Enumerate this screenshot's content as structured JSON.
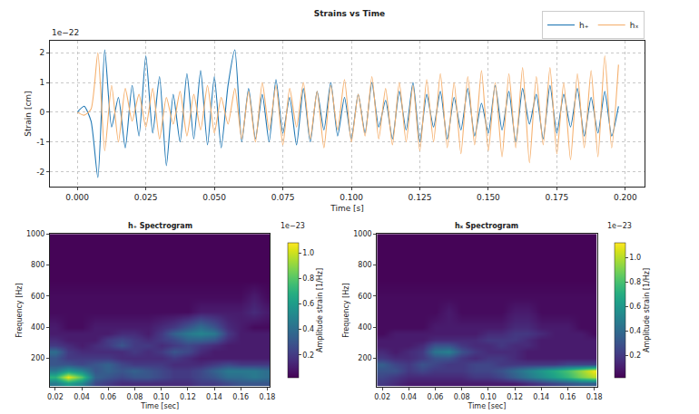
{
  "chart_data": [
    {
      "type": "line",
      "title": "Strains vs Time",
      "x_label": "Time [s]",
      "y_label": "Strain [cm]",
      "y_scale_label": "1e−22",
      "x": [
        0,
        0.0025,
        0.005,
        0.0075,
        0.01,
        0.0125,
        0.015,
        0.0175,
        0.02,
        0.0225,
        0.025,
        0.0275,
        0.03,
        0.0325,
        0.035,
        0.0375,
        0.04,
        0.0425,
        0.045,
        0.0475,
        0.05,
        0.0525,
        0.055,
        0.0575,
        0.06,
        0.0625,
        0.065,
        0.0675,
        0.07,
        0.0725,
        0.075,
        0.0775,
        0.08,
        0.0825,
        0.085,
        0.0875,
        0.09,
        0.0925,
        0.095,
        0.0975,
        0.1,
        0.1025,
        0.105,
        0.1075,
        0.11,
        0.1125,
        0.115,
        0.1175,
        0.12,
        0.1225,
        0.125,
        0.1275,
        0.13,
        0.1325,
        0.135,
        0.1375,
        0.14,
        0.1425,
        0.145,
        0.1475,
        0.15,
        0.1525,
        0.155,
        0.1575,
        0.16,
        0.1625,
        0.165,
        0.1675,
        0.17,
        0.1725,
        0.175,
        0.1775,
        0.18,
        0.1825,
        0.185,
        0.1875,
        0.19,
        0.1925,
        0.195,
        0.1975
      ],
      "series": [
        {
          "name": "h₊",
          "color": "#1f77b4",
          "values": [
            0,
            0.2,
            -0.3,
            -2.2,
            2.1,
            -0.5,
            0.5,
            -1.2,
            0.9,
            -0.8,
            1.9,
            -0.7,
            1.2,
            -1.8,
            0.6,
            -1.0,
            1.3,
            -0.9,
            1.4,
            -1.1,
            1.2,
            -1.2,
            0.9,
            2.1,
            -1.0,
            0.8,
            -0.9,
            0.6,
            -1.0,
            1.1,
            -0.7,
            0.5,
            -1.1,
            0.8,
            -1.0,
            0.7,
            -0.6,
            1.0,
            -0.8,
            0.5,
            -0.9,
            0.6,
            -0.7,
            1.0,
            -0.5,
            0.4,
            -0.9,
            0.7,
            -0.6,
            1.0,
            -1.0,
            0.6,
            -0.5,
            0.7,
            -0.9,
            0.5,
            -0.6,
            0.8,
            -0.8,
            0.3,
            -0.7,
            0.9,
            -0.6,
            0.7,
            -1.0,
            0.8,
            -0.4,
            0.6,
            -0.9,
            0.9,
            -0.7,
            0.6,
            -0.5,
            0.8,
            -0.8,
            0.5,
            -0.7,
            0.7,
            -0.8,
            0.2
          ]
        },
        {
          "name": "hₓ",
          "color": "#f5b06e",
          "values": [
            0,
            -0.1,
            0.1,
            2.0,
            -1.3,
            0.9,
            -1.0,
            0.8,
            -0.3,
            0.6,
            -0.5,
            0.8,
            -0.9,
            0.5,
            -0.4,
            0.7,
            -0.8,
            0.6,
            -0.6,
            0.9,
            -0.7,
            0.5,
            -0.4,
            0.8,
            -0.9,
            0.7,
            -1.0,
            1.0,
            -0.6,
            0.9,
            -1.1,
            0.8,
            -0.5,
            1.0,
            -0.9,
            0.7,
            -1.2,
            0.9,
            -0.6,
            1.1,
            -1.0,
            0.6,
            -0.8,
            1.2,
            -0.9,
            0.8,
            -1.1,
            1.0,
            -1.0,
            0.9,
            -1.3,
            1.1,
            -1.0,
            1.3,
            -1.2,
            1.0,
            -1.4,
            1.2,
            -1.1,
            1.4,
            -1.3,
            1.0,
            -1.5,
            1.3,
            -1.2,
            1.5,
            -1.7,
            1.2,
            -1.1,
            1.5,
            -1.4,
            1.0,
            -1.6,
            1.3,
            -1.2,
            1.4,
            -1.5,
            1.9,
            -1.2,
            1.6
          ]
        }
      ],
      "xlim": [
        -0.01,
        0.207
      ],
      "xticks": [
        {
          "value": 0,
          "label": "0.000"
        },
        {
          "value": 0.025,
          "label": "0.025"
        },
        {
          "value": 0.05,
          "label": "0.050"
        },
        {
          "value": 0.075,
          "label": "0.075"
        },
        {
          "value": 0.1,
          "label": "0.100"
        },
        {
          "value": 0.125,
          "label": "0.125"
        },
        {
          "value": 0.15,
          "label": "0.150"
        },
        {
          "value": 0.175,
          "label": "0.175"
        },
        {
          "value": 0.2,
          "label": "0.200"
        }
      ],
      "ylim": [
        -2.5,
        2.4
      ],
      "yticks": [
        -2,
        -1,
        0,
        1,
        2
      ],
      "grid": true,
      "legend": "top right"
    },
    {
      "type": "heatmap",
      "title": "h₊ Spectrogram",
      "x_label": "Time [sec]",
      "y_label": "Frequency [Hz]",
      "x": [
        0.02,
        0.03,
        0.04,
        0.05,
        0.06,
        0.07,
        0.08,
        0.09,
        0.1,
        0.11,
        0.12,
        0.13,
        0.14,
        0.15,
        0.16,
        0.17,
        0.18
      ],
      "y": [
        40,
        80,
        120,
        160,
        200,
        240,
        280,
        320,
        360,
        400,
        500,
        600,
        700,
        800,
        900,
        1000
      ],
      "z": [
        [
          0.45,
          0.6,
          0.5,
          0.25,
          0.2,
          0.15,
          0.15,
          0.15,
          0.15,
          0.15,
          0.15,
          0.2,
          0.2,
          0.25,
          0.3,
          0.3,
          0.3
        ],
        [
          0.7,
          1.05,
          0.8,
          0.35,
          0.3,
          0.25,
          0.3,
          0.3,
          0.25,
          0.2,
          0.2,
          0.25,
          0.3,
          0.4,
          0.4,
          0.45,
          0.4
        ],
        [
          0.45,
          0.6,
          0.5,
          0.3,
          0.35,
          0.3,
          0.35,
          0.3,
          0.25,
          0.2,
          0.2,
          0.25,
          0.35,
          0.45,
          0.45,
          0.45,
          0.4
        ],
        [
          0.3,
          0.3,
          0.25,
          0.3,
          0.35,
          0.25,
          0.2,
          0.2,
          0.2,
          0.15,
          0.15,
          0.15,
          0.2,
          0.25,
          0.2,
          0.2,
          0.2
        ],
        [
          0.3,
          0.2,
          0.2,
          0.2,
          0.2,
          0.15,
          0.15,
          0.15,
          0.15,
          0.2,
          0.15,
          0.1,
          0.1,
          0.1,
          0.1,
          0.1,
          0.1
        ],
        [
          0.4,
          0.2,
          0.15,
          0.15,
          0.15,
          0.15,
          0.2,
          0.15,
          0.2,
          0.3,
          0.25,
          0.15,
          0.1,
          0.1,
          0.1,
          0.1,
          0.1
        ],
        [
          0.2,
          0.15,
          0.1,
          0.15,
          0.2,
          0.3,
          0.2,
          0.2,
          0.15,
          0.2,
          0.25,
          0.2,
          0.15,
          0.1,
          0.1,
          0.1,
          0.1
        ],
        [
          0.15,
          0.1,
          0.1,
          0.1,
          0.2,
          0.25,
          0.2,
          0.15,
          0.2,
          0.25,
          0.35,
          0.35,
          0.3,
          0.15,
          0.1,
          0.1,
          0.1
        ],
        [
          0.1,
          0.1,
          0.1,
          0.1,
          0.1,
          0.15,
          0.15,
          0.1,
          0.2,
          0.35,
          0.45,
          0.5,
          0.45,
          0.2,
          0.1,
          0.1,
          0.1
        ],
        [
          0.1,
          0.05,
          0.05,
          0.1,
          0.1,
          0.1,
          0.1,
          0.1,
          0.15,
          0.2,
          0.3,
          0.4,
          0.3,
          0.15,
          0.1,
          0.05,
          0.05
        ],
        [
          0.05,
          0.05,
          0.05,
          0.05,
          0.05,
          0.05,
          0.05,
          0.05,
          0.05,
          0.05,
          0.05,
          0.1,
          0.1,
          0.1,
          0.1,
          0.15,
          0.1
        ],
        [
          0.05,
          0.05,
          0.05,
          0.05,
          0.05,
          0.05,
          0.05,
          0.05,
          0.05,
          0.05,
          0.05,
          0.05,
          0.05,
          0.05,
          0.05,
          0.1,
          0.05
        ],
        [
          0.03,
          0.03,
          0.03,
          0.03,
          0.03,
          0.03,
          0.03,
          0.03,
          0.03,
          0.03,
          0.03,
          0.03,
          0.03,
          0.03,
          0.03,
          0.03,
          0.03
        ],
        [
          0.03,
          0.03,
          0.03,
          0.03,
          0.03,
          0.03,
          0.03,
          0.03,
          0.03,
          0.03,
          0.03,
          0.03,
          0.03,
          0.03,
          0.03,
          0.03,
          0.03
        ],
        [
          0.03,
          0.03,
          0.03,
          0.03,
          0.03,
          0.03,
          0.03,
          0.03,
          0.03,
          0.03,
          0.03,
          0.03,
          0.03,
          0.03,
          0.03,
          0.03,
          0.03
        ],
        [
          0.03,
          0.03,
          0.03,
          0.03,
          0.03,
          0.03,
          0.03,
          0.03,
          0.03,
          0.03,
          0.03,
          0.03,
          0.03,
          0.03,
          0.03,
          0.03,
          0.03
        ]
      ],
      "xlim": [
        0.016,
        0.182
      ],
      "xticks": [
        {
          "value": 0.02,
          "label": "0.02"
        },
        {
          "value": 0.04,
          "label": "0.04"
        },
        {
          "value": 0.06,
          "label": "0.06"
        },
        {
          "value": 0.08,
          "label": "0.08"
        },
        {
          "value": 0.1,
          "label": "0.10"
        },
        {
          "value": 0.12,
          "label": "0.12"
        },
        {
          "value": 0.14,
          "label": "0.14"
        },
        {
          "value": 0.16,
          "label": "0.16"
        },
        {
          "value": 0.18,
          "label": "0.18"
        }
      ],
      "ylim": [
        15,
        1000
      ],
      "yticks": [
        200,
        400,
        600,
        800,
        1000
      ],
      "colorbar": {
        "title": "Amplitude strain [1/Hz]",
        "scale_label": "1e−23",
        "range": [
          0.02,
          1.08
        ],
        "ticks": [
          0.2,
          0.4,
          0.6,
          0.8,
          {
            "value": 1.0,
            "label": "1.0"
          }
        ]
      },
      "grid": true
    },
    {
      "type": "heatmap",
      "title": "hₓ Spectrogram",
      "x_label": "Time [sec]",
      "y_label": "Frequency [Hz]",
      "x": [
        0.02,
        0.03,
        0.04,
        0.05,
        0.06,
        0.07,
        0.08,
        0.09,
        0.1,
        0.11,
        0.12,
        0.13,
        0.14,
        0.15,
        0.16,
        0.17,
        0.18
      ],
      "y": [
        40,
        80,
        120,
        160,
        200,
        240,
        280,
        320,
        360,
        400,
        500,
        600,
        700,
        800,
        900,
        1000
      ],
      "z": [
        [
          0.2,
          0.15,
          0.1,
          0.1,
          0.1,
          0.1,
          0.1,
          0.1,
          0.1,
          0.1,
          0.1,
          0.15,
          0.2,
          0.25,
          0.3,
          0.35,
          0.35
        ],
        [
          0.25,
          0.2,
          0.15,
          0.15,
          0.15,
          0.15,
          0.15,
          0.2,
          0.2,
          0.25,
          0.35,
          0.45,
          0.55,
          0.65,
          0.75,
          0.9,
          1.0
        ],
        [
          0.3,
          0.3,
          0.2,
          0.25,
          0.2,
          0.2,
          0.2,
          0.25,
          0.25,
          0.3,
          0.4,
          0.5,
          0.6,
          0.7,
          0.8,
          0.95,
          1.1
        ],
        [
          0.35,
          0.25,
          0.2,
          0.3,
          0.25,
          0.2,
          0.2,
          0.25,
          0.25,
          0.2,
          0.2,
          0.2,
          0.2,
          0.2,
          0.25,
          0.25,
          0.25
        ],
        [
          0.2,
          0.15,
          0.15,
          0.2,
          0.3,
          0.3,
          0.2,
          0.15,
          0.2,
          0.2,
          0.15,
          0.1,
          0.1,
          0.1,
          0.1,
          0.1,
          0.1
        ],
        [
          0.15,
          0.1,
          0.15,
          0.2,
          0.45,
          0.5,
          0.3,
          0.2,
          0.15,
          0.15,
          0.15,
          0.1,
          0.1,
          0.1,
          0.1,
          0.1,
          0.1
        ],
        [
          0.1,
          0.1,
          0.1,
          0.15,
          0.3,
          0.3,
          0.2,
          0.15,
          0.15,
          0.2,
          0.15,
          0.15,
          0.1,
          0.1,
          0.1,
          0.1,
          0.1
        ],
        [
          0.1,
          0.1,
          0.1,
          0.1,
          0.15,
          0.15,
          0.15,
          0.15,
          0.2,
          0.2,
          0.2,
          0.15,
          0.1,
          0.1,
          0.1,
          0.1,
          0.1
        ],
        [
          0.05,
          0.1,
          0.1,
          0.1,
          0.1,
          0.1,
          0.1,
          0.1,
          0.15,
          0.15,
          0.2,
          0.2,
          0.15,
          0.1,
          0.1,
          0.1,
          0.05
        ],
        [
          0.05,
          0.05,
          0.05,
          0.05,
          0.1,
          0.1,
          0.1,
          0.1,
          0.1,
          0.1,
          0.15,
          0.15,
          0.1,
          0.1,
          0.1,
          0.05,
          0.05
        ],
        [
          0.05,
          0.05,
          0.05,
          0.05,
          0.05,
          0.1,
          0.05,
          0.05,
          0.05,
          0.05,
          0.1,
          0.1,
          0.05,
          0.05,
          0.05,
          0.05,
          0.05
        ],
        [
          0.05,
          0.05,
          0.05,
          0.05,
          0.05,
          0.05,
          0.05,
          0.05,
          0.05,
          0.05,
          0.05,
          0.05,
          0.05,
          0.05,
          0.05,
          0.05,
          0.05
        ],
        [
          0.03,
          0.03,
          0.03,
          0.03,
          0.03,
          0.03,
          0.03,
          0.03,
          0.03,
          0.03,
          0.03,
          0.03,
          0.03,
          0.03,
          0.03,
          0.03,
          0.03
        ],
        [
          0.03,
          0.03,
          0.03,
          0.03,
          0.03,
          0.03,
          0.03,
          0.03,
          0.03,
          0.03,
          0.03,
          0.03,
          0.03,
          0.03,
          0.03,
          0.03,
          0.03
        ],
        [
          0.03,
          0.03,
          0.03,
          0.03,
          0.03,
          0.03,
          0.03,
          0.03,
          0.03,
          0.03,
          0.03,
          0.03,
          0.03,
          0.03,
          0.03,
          0.03,
          0.03
        ],
        [
          0.03,
          0.03,
          0.03,
          0.03,
          0.03,
          0.03,
          0.03,
          0.03,
          0.03,
          0.03,
          0.03,
          0.03,
          0.03,
          0.03,
          0.03,
          0.03,
          0.03
        ]
      ],
      "xlim": [
        0.016,
        0.182
      ],
      "xticks": [
        {
          "value": 0.02,
          "label": "0.02"
        },
        {
          "value": 0.04,
          "label": "0.04"
        },
        {
          "value": 0.06,
          "label": "0.06"
        },
        {
          "value": 0.08,
          "label": "0.08"
        },
        {
          "value": 0.1,
          "label": "0.10"
        },
        {
          "value": 0.12,
          "label": "0.12"
        },
        {
          "value": 0.14,
          "label": "0.14"
        },
        {
          "value": 0.16,
          "label": "0.16"
        },
        {
          "value": 0.18,
          "label": "0.18"
        }
      ],
      "ylim": [
        15,
        1000
      ],
      "yticks": [
        200,
        400,
        600,
        800,
        1000
      ],
      "colorbar": {
        "title": "Amplitude strain [1/Hz]",
        "scale_label": "1e−23",
        "range": [
          0.02,
          1.12
        ],
        "ticks": [
          0.2,
          0.4,
          0.6,
          0.8,
          {
            "value": 1.0,
            "label": "1.0"
          }
        ]
      },
      "grid": true
    }
  ]
}
